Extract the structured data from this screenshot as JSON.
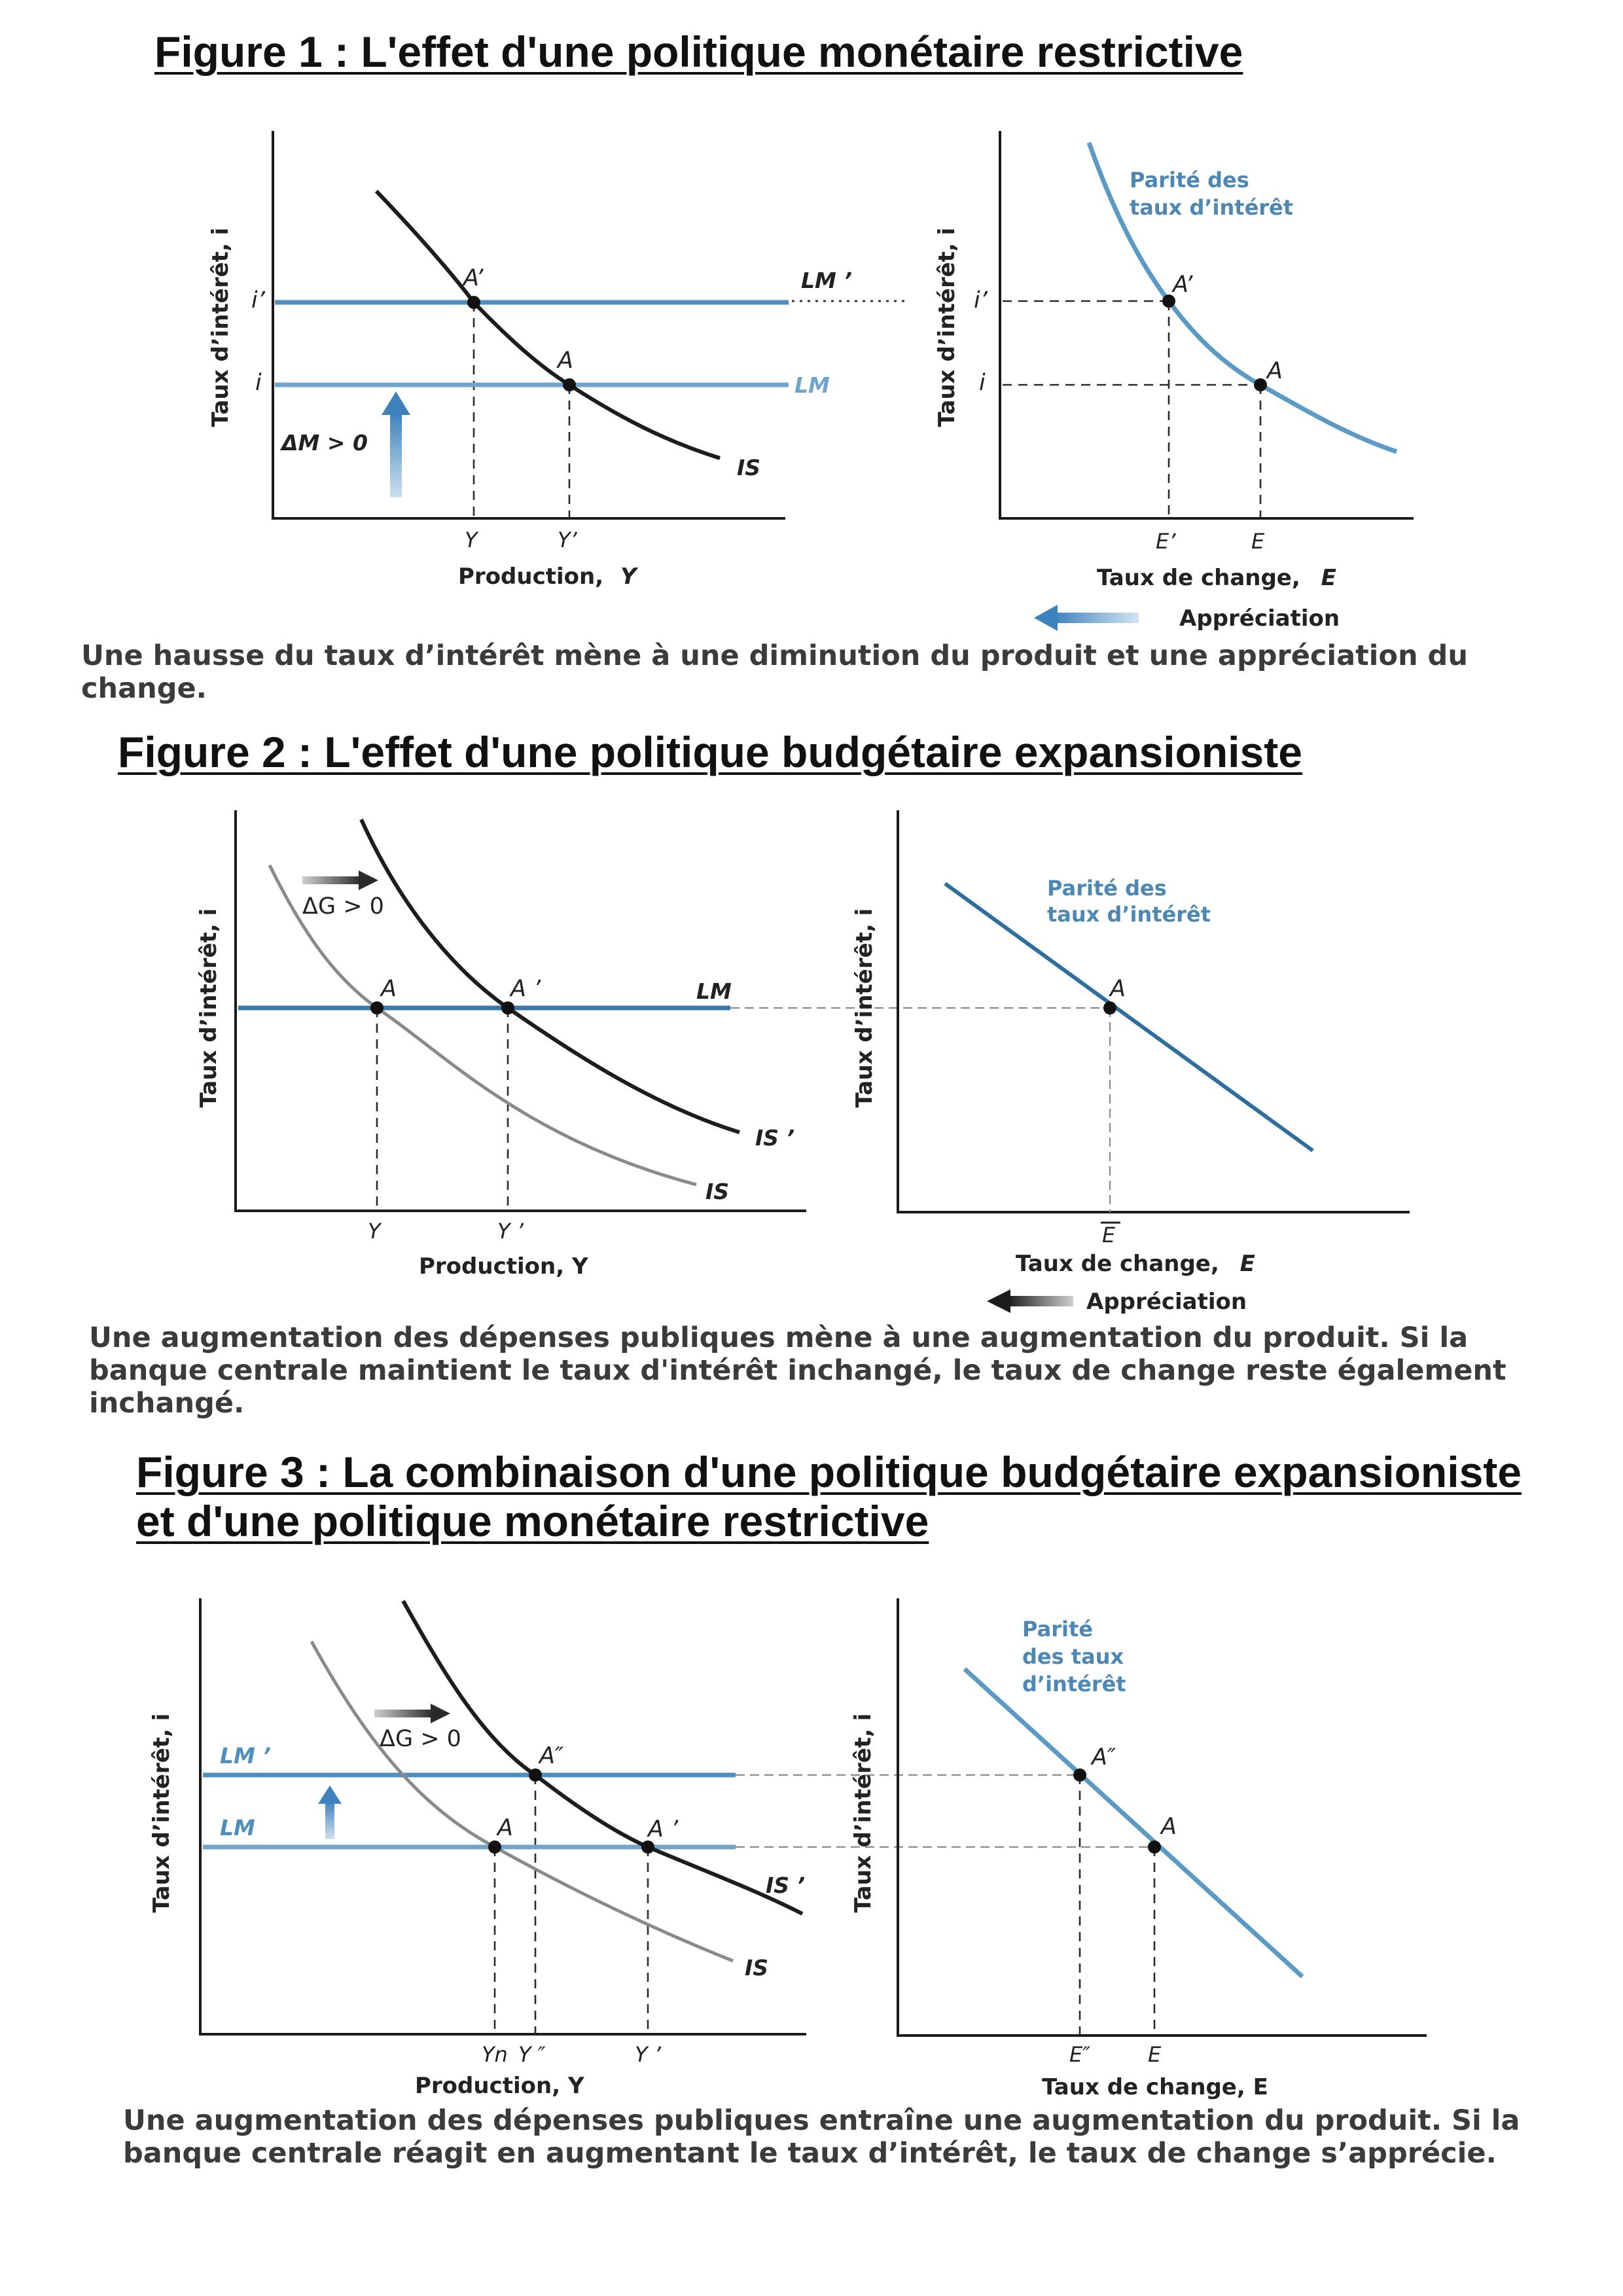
{
  "figures": [
    {
      "title": "Figure 1 : L'effet d'une politique monétaire restrictive",
      "left": {
        "y_axis_label": "Taux d’intérêt, i",
        "x_axis_label": "Production,",
        "x_axis_symbol": "Y",
        "y_ticks": [
          "i’",
          "i"
        ],
        "x_ticks": [
          "Y",
          "Y’"
        ],
        "curves": [
          "LM ’",
          "LM",
          "IS"
        ],
        "points": [
          "A’",
          "A"
        ],
        "shift_label": "ΔM > 0"
      },
      "right": {
        "y_axis_label": "Taux d’intérêt, i",
        "x_axis_label": "Taux de change,",
        "x_axis_symbol": "E",
        "y_ticks": [
          "i’",
          "i"
        ],
        "x_ticks": [
          "E’",
          "E"
        ],
        "curve_label": [
          "Parité des",
          "taux d’intérêt"
        ],
        "points": [
          "A’",
          "A"
        ],
        "arrow_label": "Appréciation"
      },
      "caption": "Une hausse du taux d’intérêt mène à une diminution du produit et une appréciation du change."
    },
    {
      "title": "Figure 2 : L'effet d'une politique budgétaire expansioniste",
      "left": {
        "y_axis_label": "Taux d’intérêt, i",
        "x_axis_label": "Production, Y",
        "x_ticks": [
          "Y",
          "Y ’"
        ],
        "curves": [
          "LM",
          "IS ’",
          "IS"
        ],
        "points": [
          "A",
          "A ’"
        ],
        "shift_label": "ΔG > 0"
      },
      "right": {
        "y_axis_label": "Taux d’intérêt, i",
        "x_axis_label": "Taux de change,",
        "x_axis_symbol": "E",
        "x_ticks": [
          "E"
        ],
        "curve_label": [
          "Parité des",
          "taux d’intérêt"
        ],
        "points": [
          "A"
        ],
        "arrow_label": "Appréciation"
      },
      "caption": "Une augmentation des dépenses publiques mène à une augmentation du produit. Si la banque centrale maintient le taux d'intérêt inchangé, le taux de change reste également inchangé."
    },
    {
      "title": "Figure 3 : La combinaison d'une politique budgétaire expansioniste et d'une politique monétaire restrictive",
      "left": {
        "y_axis_label": "Taux d’intérêt, i",
        "x_axis_label": "Production, Y",
        "x_ticks": [
          "Yn",
          "Y ″",
          "Y ’"
        ],
        "curves": [
          "LM ’",
          "LM",
          "IS ’",
          "IS"
        ],
        "points": [
          "A″",
          "A",
          "A ’"
        ],
        "shift_label": "ΔG > 0"
      },
      "right": {
        "y_axis_label": "Taux d’intérêt, i",
        "x_axis_label": "Taux de change, E",
        "x_ticks": [
          "E″",
          "E"
        ],
        "curve_label": [
          "Parité",
          "des taux",
          "d’intérêt"
        ],
        "points": [
          "A″",
          "A"
        ]
      },
      "caption": "Une augmentation des dépenses publiques entraîne une augmentation du produit. Si la banque centrale réagit en augmentant le taux d’intérêt, le taux de change s’apprécie."
    }
  ],
  "colors": {
    "lm_blue": "#4e8fbe",
    "parity_blue": "#5b9ac5",
    "arrow_blue": "#4a8cc2",
    "is_black": "#1d1d1d",
    "is_grey": "#8a8a8a"
  }
}
